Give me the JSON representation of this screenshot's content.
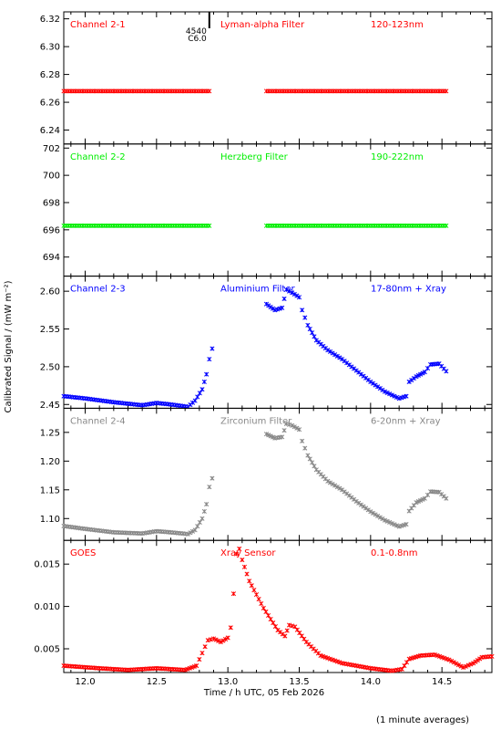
{
  "footer_note": "(1 minute averages)",
  "chart_data": {
    "type": "scatter",
    "xlabel": "Time / h UTC, 05 Feb 2026",
    "ylabel": "Calibrated Signal / (mW m⁻²)",
    "xlim": [
      11.85,
      14.85
    ],
    "xticks": [
      "12.0",
      "12.5",
      "13.0",
      "13.5",
      "14.0",
      "14.5"
    ],
    "xtick_values": [
      12.0,
      12.5,
      13.0,
      13.5,
      14.0,
      14.5
    ],
    "marker_note": {
      "top": "4540",
      "bottom": "C6.0",
      "x": 12.87
    },
    "grid": false,
    "panels": [
      {
        "labels": [
          "Channel 2-1",
          "Lyman-alpha Filter",
          "120-123nm"
        ],
        "color": "#ff0000",
        "ylim": [
          6.23,
          6.325
        ],
        "yticks": [
          "6.24",
          "6.26",
          "6.28",
          "6.30",
          "6.32"
        ],
        "ytick_values": [
          6.24,
          6.26,
          6.28,
          6.3,
          6.32
        ],
        "series": [
          {
            "points": [
              [
                11.85,
                6.268
              ],
              [
                12.87,
                6.268
              ]
            ]
          },
          {
            "points": [
              [
                13.27,
                6.268
              ],
              [
                14.53,
                6.268
              ]
            ]
          }
        ]
      },
      {
        "labels": [
          "Channel 2-2",
          "Herzberg Filter",
          "190-222nm"
        ],
        "color": "#00ee00",
        "ylim": [
          692.6,
          702.3
        ],
        "yticks": [
          "694",
          "696",
          "698",
          "700",
          "702"
        ],
        "ytick_values": [
          694,
          696,
          698,
          700,
          702
        ],
        "series": [
          {
            "points": [
              [
                11.85,
                696.3
              ],
              [
                12.87,
                696.3
              ]
            ]
          },
          {
            "points": [
              [
                13.27,
                696.3
              ],
              [
                14.53,
                696.3
              ]
            ]
          }
        ]
      },
      {
        "labels": [
          "Channel 2-3",
          "Aluminium Filter",
          "17-80nm + Xray"
        ],
        "color": "#0000ff",
        "ylim": [
          2.445,
          2.62
        ],
        "yticks": [
          "2.45",
          "2.50",
          "2.55",
          "2.60"
        ],
        "ytick_values": [
          2.45,
          2.5,
          2.55,
          2.6
        ],
        "series": [
          {
            "points": [
              [
                11.85,
                2.461
              ],
              [
                12.0,
                2.458
              ],
              [
                12.2,
                2.453
              ],
              [
                12.4,
                2.449
              ],
              [
                12.5,
                2.452
              ],
              [
                12.6,
                2.45
              ],
              [
                12.72,
                2.447
              ],
              [
                12.77,
                2.455
              ],
              [
                12.82,
                2.47
              ],
              [
                12.85,
                2.49
              ],
              [
                12.87,
                2.51
              ],
              [
                12.89,
                2.524
              ]
            ]
          },
          {
            "points": [
              [
                13.27,
                2.583
              ],
              [
                13.33,
                2.575
              ],
              [
                13.38,
                2.578
              ],
              [
                13.41,
                2.602
              ],
              [
                13.45,
                2.598
              ],
              [
                13.5,
                2.592
              ],
              [
                13.52,
                2.575
              ],
              [
                13.56,
                2.555
              ],
              [
                13.62,
                2.535
              ],
              [
                13.7,
                2.522
              ],
              [
                13.8,
                2.51
              ],
              [
                13.9,
                2.495
              ],
              [
                14.0,
                2.48
              ],
              [
                14.1,
                2.467
              ],
              [
                14.2,
                2.458
              ],
              [
                14.25,
                2.461
              ],
              [
                14.27,
                2.48
              ],
              [
                14.32,
                2.487
              ],
              [
                14.38,
                2.493
              ],
              [
                14.42,
                2.503
              ],
              [
                14.48,
                2.504
              ],
              [
                14.53,
                2.494
              ]
            ]
          }
        ]
      },
      {
        "labels": [
          "Channel 2-4",
          "Zirconium Filter",
          "6-20nm + Xray"
        ],
        "color": "#888888",
        "ylim": [
          1.062,
          1.292
        ],
        "yticks": [
          "1.10",
          "1.15",
          "1.20",
          "1.25"
        ],
        "ytick_values": [
          1.1,
          1.15,
          1.2,
          1.25
        ],
        "series": [
          {
            "points": [
              [
                11.85,
                1.087
              ],
              [
                12.0,
                1.082
              ],
              [
                12.2,
                1.076
              ],
              [
                12.4,
                1.074
              ],
              [
                12.5,
                1.078
              ],
              [
                12.6,
                1.076
              ],
              [
                12.72,
                1.073
              ],
              [
                12.77,
                1.08
              ],
              [
                12.82,
                1.1
              ],
              [
                12.85,
                1.125
              ],
              [
                12.87,
                1.155
              ],
              [
                12.89,
                1.17
              ]
            ]
          },
          {
            "points": [
              [
                13.27,
                1.247
              ],
              [
                13.33,
                1.24
              ],
              [
                13.38,
                1.242
              ],
              [
                13.41,
                1.265
              ],
              [
                13.45,
                1.262
              ],
              [
                13.5,
                1.255
              ],
              [
                13.52,
                1.235
              ],
              [
                13.56,
                1.21
              ],
              [
                13.62,
                1.185
              ],
              [
                13.7,
                1.165
              ],
              [
                13.8,
                1.15
              ],
              [
                13.9,
                1.13
              ],
              [
                14.0,
                1.112
              ],
              [
                14.1,
                1.097
              ],
              [
                14.2,
                1.086
              ],
              [
                14.25,
                1.09
              ],
              [
                14.27,
                1.113
              ],
              [
                14.32,
                1.128
              ],
              [
                14.38,
                1.135
              ],
              [
                14.42,
                1.147
              ],
              [
                14.48,
                1.146
              ],
              [
                14.53,
                1.135
              ]
            ]
          }
        ]
      },
      {
        "labels": [
          "GOES",
          "Xray Sensor",
          "0.1-0.8nm"
        ],
        "color": "#ff0000",
        "ylim": [
          0.0022,
          0.0178
        ],
        "yticks": [
          "0.005",
          "0.010",
          "0.015"
        ],
        "ytick_values": [
          0.005,
          0.01,
          0.015
        ],
        "series": [
          {
            "points": [
              [
                11.85,
                0.003
              ],
              [
                12.1,
                0.0027
              ],
              [
                12.3,
                0.0025
              ],
              [
                12.5,
                0.0027
              ],
              [
                12.7,
                0.0025
              ],
              [
                12.78,
                0.003
              ],
              [
                12.82,
                0.0045
              ],
              [
                12.86,
                0.006
              ],
              [
                12.9,
                0.0062
              ],
              [
                12.95,
                0.0058
              ],
              [
                13.0,
                0.0063
              ],
              [
                13.02,
                0.0075
              ],
              [
                13.04,
                0.0115
              ],
              [
                13.06,
                0.0162
              ],
              [
                13.08,
                0.0168
              ],
              [
                13.1,
                0.0155
              ],
              [
                13.15,
                0.013
              ],
              [
                13.25,
                0.0098
              ],
              [
                13.35,
                0.0072
              ],
              [
                13.4,
                0.0065
              ],
              [
                13.43,
                0.0078
              ],
              [
                13.47,
                0.0076
              ],
              [
                13.55,
                0.0058
              ],
              [
                13.65,
                0.0042
              ],
              [
                13.8,
                0.0033
              ],
              [
                14.0,
                0.0027
              ],
              [
                14.15,
                0.0024
              ],
              [
                14.22,
                0.0026
              ],
              [
                14.27,
                0.0038
              ],
              [
                14.35,
                0.0042
              ],
              [
                14.45,
                0.0043
              ],
              [
                14.55,
                0.0037
              ],
              [
                14.65,
                0.0028
              ],
              [
                14.72,
                0.0033
              ],
              [
                14.78,
                0.004
              ],
              [
                14.85,
                0.0041
              ]
            ]
          }
        ]
      }
    ]
  }
}
